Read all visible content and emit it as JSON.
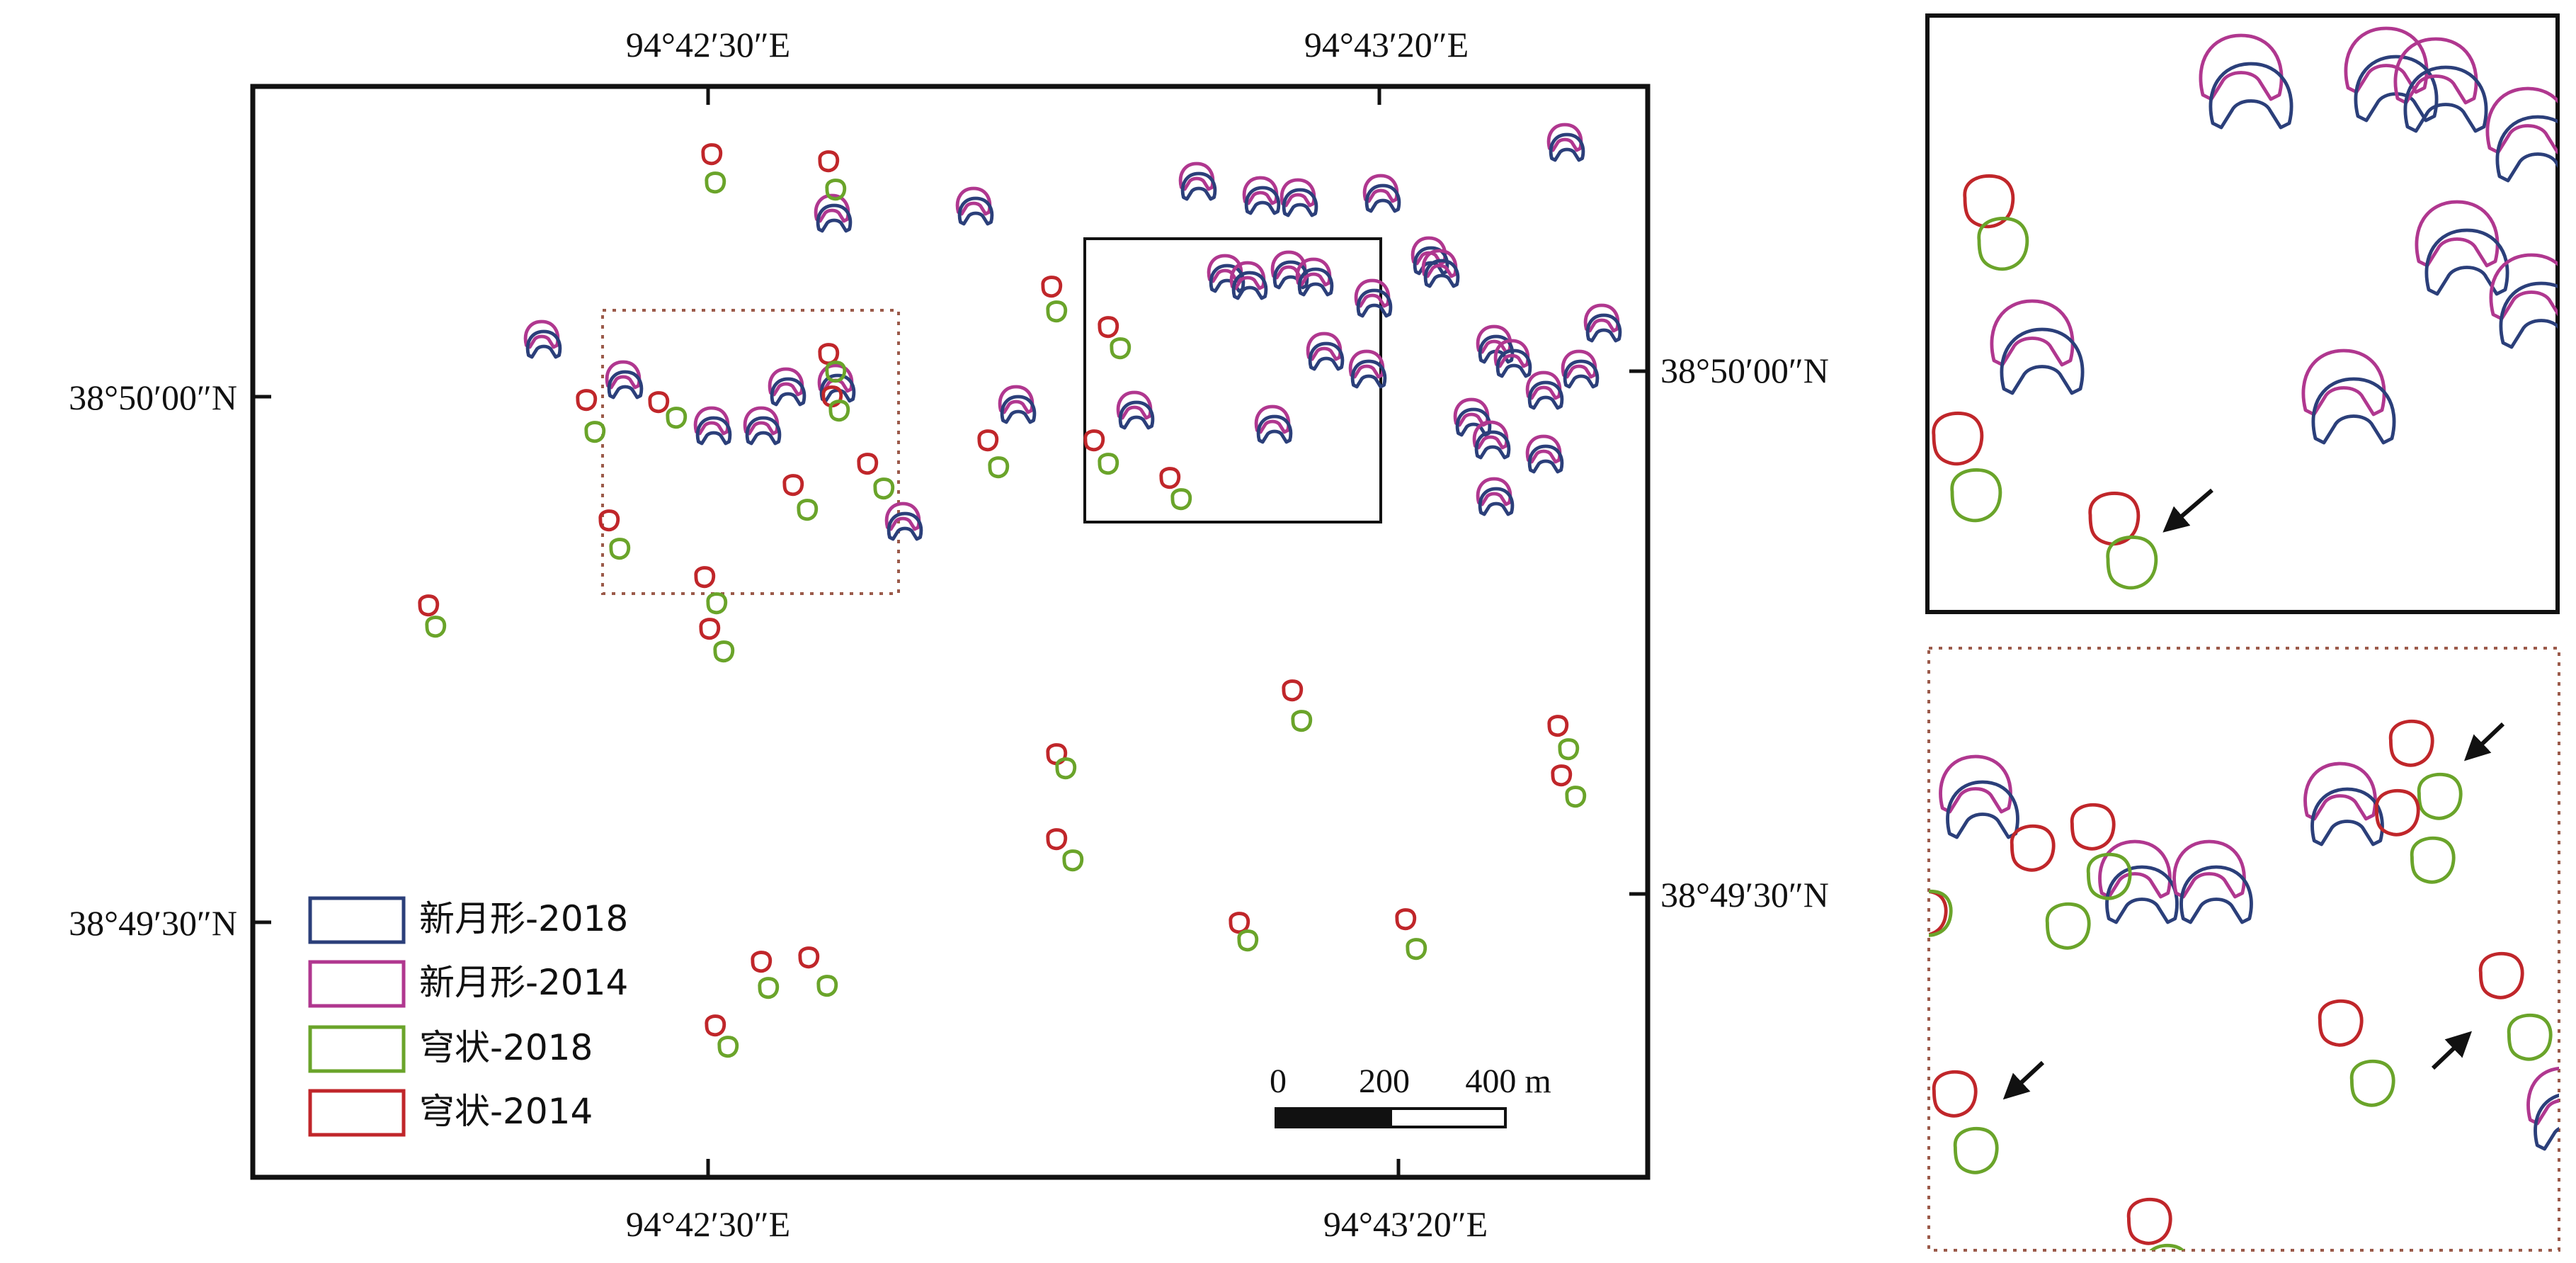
{
  "map": {
    "coord_labels": {
      "top_lon_1": "94°42′30″E",
      "top_lon_2": "94°43′20″E",
      "bottom_lon_1": "94°42′30″E",
      "bottom_lon_2": "94°43′20″E",
      "left_lat_1": "38°50′00″N",
      "left_lat_2": "38°49′30″N",
      "right_lat_1": "38°50′00″N",
      "right_lat_2": "38°49′30″N"
    },
    "legend": {
      "items": [
        {
          "label": "新月形-2018",
          "color": "#2b3f7a"
        },
        {
          "label": "新月形-2014",
          "color": "#b0378f"
        },
        {
          "label": "穹状-2018",
          "color": "#6aa42a"
        },
        {
          "label": "穹状-2014",
          "color": "#c0262a"
        }
      ]
    },
    "scale_bar": {
      "ticks": [
        "0",
        "200",
        "400 m"
      ]
    },
    "colors": {
      "crescent_2018": "#2b3f7a",
      "crescent_2014": "#b0378f",
      "dome_2018": "#6aa42a",
      "dome_2014": "#c0262a",
      "frame": "#111111",
      "dotted_frame": "#9b5a4a",
      "arrow": "#111111"
    }
  }
}
